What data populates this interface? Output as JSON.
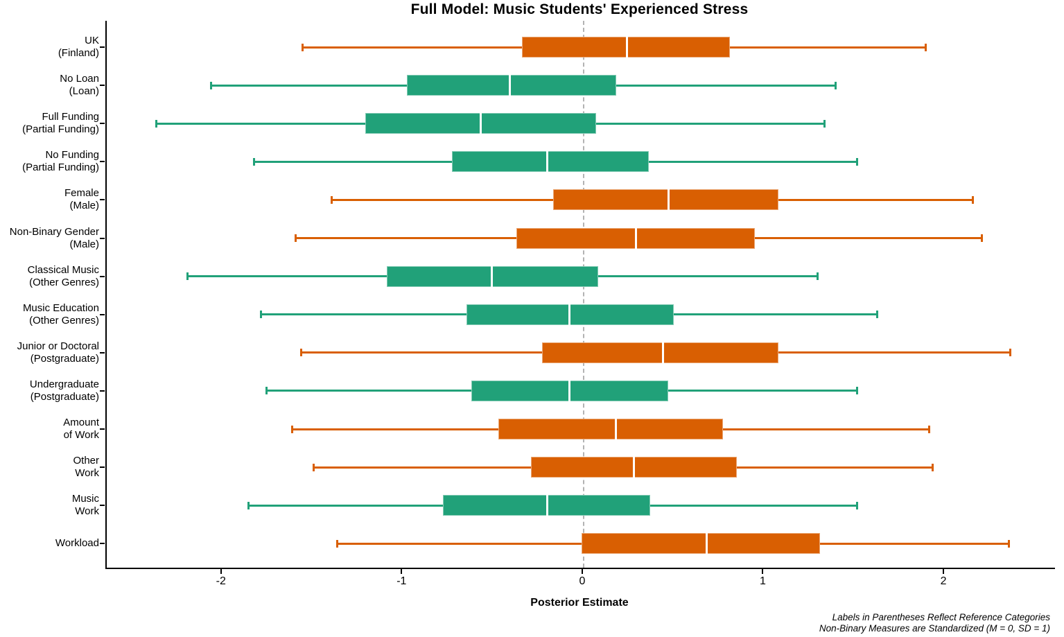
{
  "chart_data": {
    "type": "boxplot",
    "orientation": "horizontal",
    "title": "Full Model: Music Students' Experienced Stress",
    "xlabel": "Posterior Estimate",
    "x_ticks": [
      -2,
      -1,
      0,
      1,
      2
    ],
    "xlim": [
      -2.64,
      2.61
    ],
    "zero_reference_line": 0,
    "grid": false,
    "legend": "none",
    "palette": {
      "orange": "#D95F02",
      "green": "#21A179",
      "median_line": "#FFFFFF",
      "zero_line_gray": "#B3B3B3"
    },
    "footnotes": [
      "Labels in Parentheses Reflect Reference Categories",
      "Non-Binary Measures are Standardized (M = 0, SD = 1)"
    ],
    "rows": [
      {
        "label_lines": [
          "UK",
          "(Finland)"
        ],
        "color": "orange",
        "whisker_low": -1.56,
        "q1": -0.34,
        "median": 0.24,
        "q3": 0.81,
        "whisker_high": 1.9
      },
      {
        "label_lines": [
          "No Loan",
          "(Loan)"
        ],
        "color": "green",
        "whisker_low": -2.07,
        "q1": -0.98,
        "median": -0.41,
        "q3": 0.18,
        "whisker_high": 1.4
      },
      {
        "label_lines": [
          "Full Funding",
          "(Partial Funding)"
        ],
        "color": "green",
        "whisker_low": -2.37,
        "q1": -1.21,
        "median": -0.57,
        "q3": 0.07,
        "whisker_high": 1.34
      },
      {
        "label_lines": [
          "No Funding",
          "(Partial Funding)"
        ],
        "color": "green",
        "whisker_low": -1.83,
        "q1": -0.73,
        "median": -0.2,
        "q3": 0.36,
        "whisker_high": 1.52
      },
      {
        "label_lines": [
          "Female",
          "(Male)"
        ],
        "color": "orange",
        "whisker_low": -1.4,
        "q1": -0.17,
        "median": 0.47,
        "q3": 1.08,
        "whisker_high": 2.16
      },
      {
        "label_lines": [
          "Non-Binary Gender",
          "(Male)"
        ],
        "color": "orange",
        "whisker_low": -1.6,
        "q1": -0.37,
        "median": 0.29,
        "q3": 0.95,
        "whisker_high": 2.21
      },
      {
        "label_lines": [
          "Classical Music",
          "(Other Genres)"
        ],
        "color": "green",
        "whisker_low": -2.2,
        "q1": -1.09,
        "median": -0.51,
        "q3": 0.08,
        "whisker_high": 1.3
      },
      {
        "label_lines": [
          "Music Education",
          "(Other Genres)"
        ],
        "color": "green",
        "whisker_low": -1.79,
        "q1": -0.65,
        "median": -0.08,
        "q3": 0.5,
        "whisker_high": 1.63
      },
      {
        "label_lines": [
          "Junior or Doctoral",
          "(Postgraduate)"
        ],
        "color": "orange",
        "whisker_low": -1.57,
        "q1": -0.23,
        "median": 0.44,
        "q3": 1.08,
        "whisker_high": 2.37
      },
      {
        "label_lines": [
          "Undergraduate",
          "(Postgraduate)"
        ],
        "color": "green",
        "whisker_low": -1.76,
        "q1": -0.62,
        "median": -0.08,
        "q3": 0.47,
        "whisker_high": 1.52
      },
      {
        "label_lines": [
          "Amount",
          "of Work"
        ],
        "color": "orange",
        "whisker_low": -1.62,
        "q1": -0.47,
        "median": 0.18,
        "q3": 0.77,
        "whisker_high": 1.92
      },
      {
        "label_lines": [
          "Other",
          "Work"
        ],
        "color": "orange",
        "whisker_low": -1.5,
        "q1": -0.29,
        "median": 0.28,
        "q3": 0.85,
        "whisker_high": 1.94
      },
      {
        "label_lines": [
          "Music",
          "Work"
        ],
        "color": "green",
        "whisker_low": -1.86,
        "q1": -0.78,
        "median": -0.2,
        "q3": 0.37,
        "whisker_high": 1.52
      },
      {
        "label_lines": [
          "Workload"
        ],
        "color": "orange",
        "whisker_low": -1.37,
        "q1": -0.01,
        "median": 0.68,
        "q3": 1.31,
        "whisker_high": 2.36
      }
    ]
  }
}
